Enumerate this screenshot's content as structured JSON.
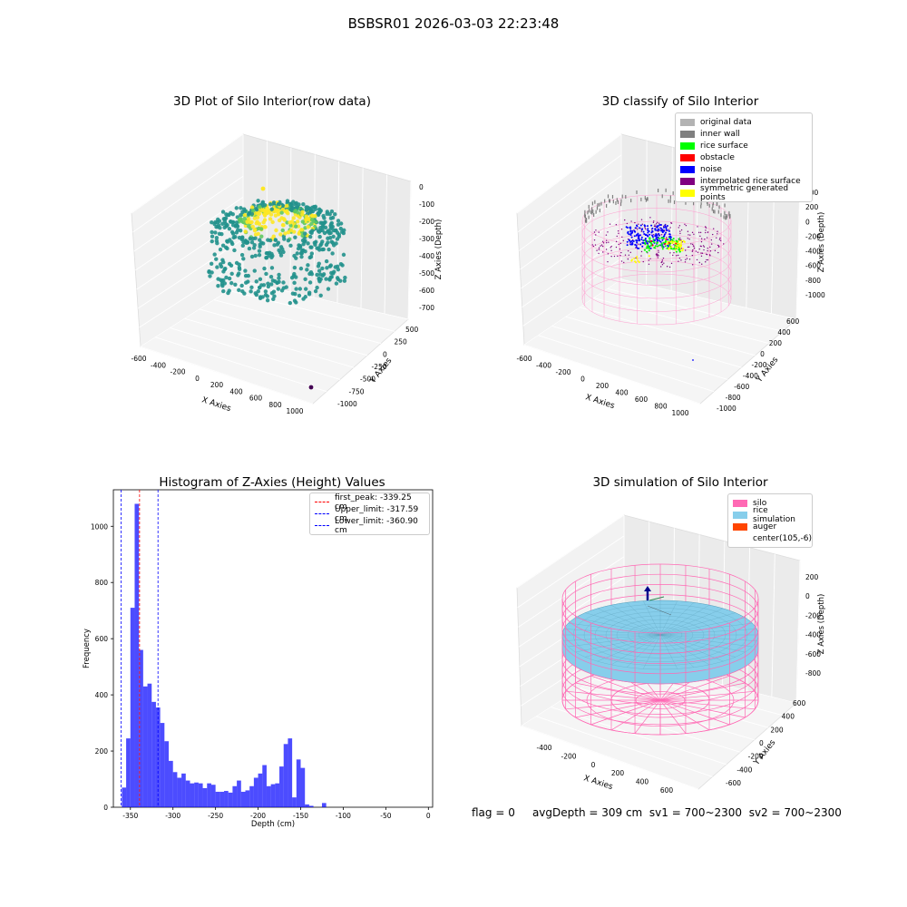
{
  "suptitle": "BSBSR01 2026-03-03 22:23:48",
  "status": {
    "flag": "flag = 0",
    "avg_depth": "avgDepth = 309 cm",
    "sv1": "sv1 = 700~2300",
    "sv2": "sv2 = 700~2300"
  },
  "chart_data": [
    {
      "type": "scatter",
      "title": "3D Plot of Silo Interior(row data)",
      "xlabel": "X Axies",
      "ylabel": "Y Axies",
      "zlabel": "Z Axies (Depth)",
      "x_ticks": [
        "-600",
        "-400",
        "-200",
        "0",
        "200",
        "400",
        "600",
        "800",
        "1000"
      ],
      "y_ticks": [
        "500",
        "250",
        "0",
        "-250",
        "-500",
        "-750",
        "-1000"
      ],
      "z_ticks": [
        "0",
        "-100",
        "-200",
        "-300",
        "-400",
        "-500",
        "-600",
        "-700"
      ],
      "colors": {
        "low": "#21918c",
        "mid": "#5ec962",
        "high": "#fde725",
        "outlier": "#440154"
      }
    },
    {
      "type": "scatter",
      "title": "3D classify of Silo Interior",
      "xlabel": "X Axies",
      "ylabel": "Y Axies",
      "zlabel": "Z Axies (Depth)",
      "x_ticks": [
        "-600",
        "-400",
        "-200",
        "0",
        "200",
        "400",
        "600",
        "800",
        "1000"
      ],
      "y_ticks": [
        "600",
        "400",
        "200",
        "0",
        "-200",
        "-400",
        "-600",
        "-800",
        "-1000"
      ],
      "z_ticks": [
        "400",
        "200",
        "0",
        "-200",
        "-400",
        "-600",
        "-800",
        "-1000"
      ],
      "legend": [
        {
          "label": "original data",
          "color": "#b3b3b3"
        },
        {
          "label": "inner wall",
          "color": "#808080"
        },
        {
          "label": "rice surface",
          "color": "#00ff00"
        },
        {
          "label": "obstacle",
          "color": "#ff0000"
        },
        {
          "label": "noise",
          "color": "#0000ff"
        },
        {
          "label": "interpolated rice surface",
          "color": "#800080"
        },
        {
          "label": "symmetric generated points",
          "color": "#ffff00"
        }
      ]
    },
    {
      "type": "bar",
      "title": "Histogram of Z-Axies (Height) Values",
      "xlabel": "Depth (cm)",
      "ylabel": "Frequency",
      "xlim": [
        -370,
        5
      ],
      "ylim": [
        0,
        1130
      ],
      "x_ticks": [
        -350,
        -300,
        -250,
        -200,
        -150,
        -100,
        -50,
        0
      ],
      "y_ticks": [
        0,
        200,
        400,
        600,
        800,
        1000
      ],
      "bin_width": 5,
      "bins": [
        {
          "x": -360,
          "v": 70
        },
        {
          "x": -355,
          "v": 245
        },
        {
          "x": -350,
          "v": 710
        },
        {
          "x": -345,
          "v": 1080
        },
        {
          "x": -340,
          "v": 560
        },
        {
          "x": -335,
          "v": 430
        },
        {
          "x": -330,
          "v": 440
        },
        {
          "x": -325,
          "v": 375
        },
        {
          "x": -320,
          "v": 355
        },
        {
          "x": -315,
          "v": 300
        },
        {
          "x": -310,
          "v": 235
        },
        {
          "x": -305,
          "v": 165
        },
        {
          "x": -300,
          "v": 125
        },
        {
          "x": -295,
          "v": 105
        },
        {
          "x": -290,
          "v": 120
        },
        {
          "x": -285,
          "v": 95
        },
        {
          "x": -280,
          "v": 85
        },
        {
          "x": -275,
          "v": 88
        },
        {
          "x": -270,
          "v": 85
        },
        {
          "x": -265,
          "v": 68
        },
        {
          "x": -260,
          "v": 85
        },
        {
          "x": -255,
          "v": 80
        },
        {
          "x": -250,
          "v": 55
        },
        {
          "x": -245,
          "v": 55
        },
        {
          "x": -240,
          "v": 58
        },
        {
          "x": -235,
          "v": 52
        },
        {
          "x": -230,
          "v": 75
        },
        {
          "x": -225,
          "v": 95
        },
        {
          "x": -220,
          "v": 55
        },
        {
          "x": -215,
          "v": 60
        },
        {
          "x": -210,
          "v": 75
        },
        {
          "x": -205,
          "v": 105
        },
        {
          "x": -200,
          "v": 120
        },
        {
          "x": -195,
          "v": 150
        },
        {
          "x": -190,
          "v": 75
        },
        {
          "x": -185,
          "v": 82
        },
        {
          "x": -180,
          "v": 85
        },
        {
          "x": -175,
          "v": 145
        },
        {
          "x": -170,
          "v": 225
        },
        {
          "x": -165,
          "v": 245
        },
        {
          "x": -160,
          "v": 35
        },
        {
          "x": -155,
          "v": 170
        },
        {
          "x": -150,
          "v": 140
        },
        {
          "x": -145,
          "v": 10
        },
        {
          "x": -140,
          "v": 5
        },
        {
          "x": -135,
          "v": 0
        },
        {
          "x": -130,
          "v": 0
        },
        {
          "x": -125,
          "v": 15
        }
      ],
      "color": "#0000ff",
      "lines": [
        {
          "label": "first_peak: -339.25 cm",
          "value": -339.25,
          "color": "#ff0000"
        },
        {
          "label": "Upper_limit: -317.59 cm",
          "value": -317.59,
          "color": "#0000ff"
        },
        {
          "label": "Lower_limit: -360.90 cm",
          "value": -360.9,
          "color": "#0000ff"
        }
      ],
      "legend_position": "top-right"
    },
    {
      "type": "scatter",
      "title": "3D simulation of Silo Interior",
      "xlabel": "X Axies",
      "ylabel": "Y Axies",
      "zlabel": "Z Axies (Depth)",
      "x_ticks": [
        "-400",
        "-200",
        "0",
        "200",
        "400",
        "600"
      ],
      "y_ticks": [
        "600",
        "400",
        "200",
        "0",
        "-200",
        "-400",
        "-600"
      ],
      "z_ticks": [
        "200",
        "0",
        "-200",
        "-400",
        "-600",
        "-800"
      ],
      "legend": [
        {
          "label": "silo",
          "color": "#ff69b4"
        },
        {
          "label": "rice simulation",
          "color": "#87ceeb"
        },
        {
          "label": "auger",
          "color": "#ff4500"
        },
        {
          "label": "center(105,-6)",
          "color": "#ffffff"
        }
      ]
    }
  ]
}
